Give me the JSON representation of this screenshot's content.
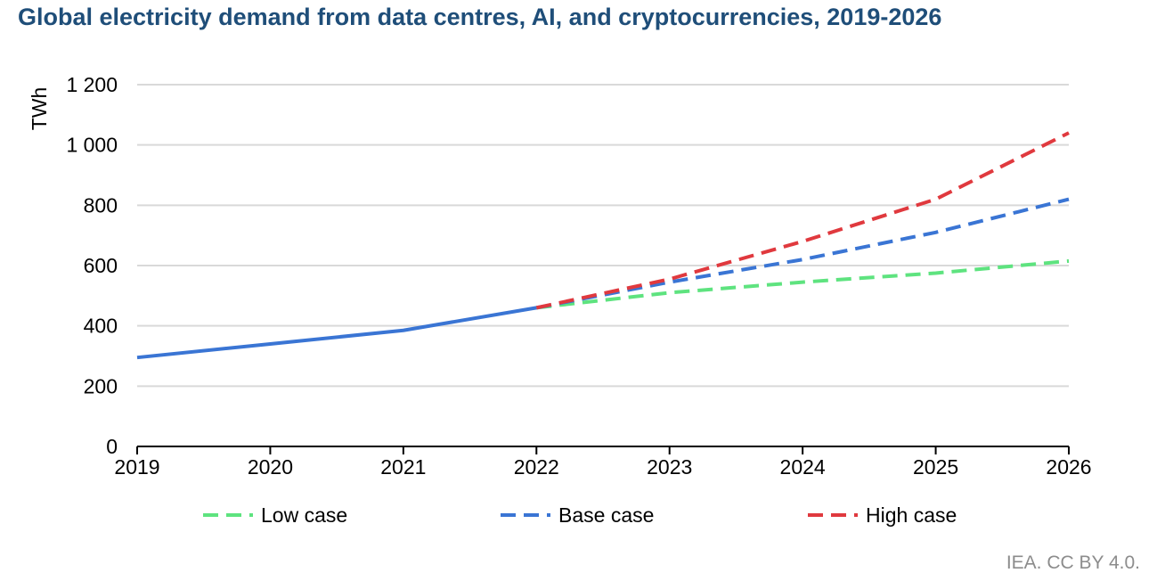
{
  "colors": {
    "title": "#1f4e79",
    "grid": "#d9d9d9",
    "axis": "#000000",
    "source": "#8c8c8c"
  },
  "chart_data": {
    "type": "line",
    "title": "Global electricity demand from data centres, AI, and cryptocurrencies, 2019-2026",
    "xlabel": "",
    "ylabel": "TWh",
    "x": [
      2019,
      2020,
      2021,
      2022,
      2023,
      2024,
      2025,
      2026
    ],
    "xlim": [
      2019,
      2026
    ],
    "ylim": [
      0,
      1200
    ],
    "y_ticks": [
      0,
      200,
      400,
      600,
      800,
      1000,
      1200
    ],
    "y_tick_labels": [
      "0",
      "200",
      "400",
      "600",
      "800",
      "1 000",
      "1 200"
    ],
    "x_tick_labels": [
      "2019",
      "2020",
      "2021",
      "2022",
      "2023",
      "2024",
      "2025",
      "2026"
    ],
    "grid": true,
    "legend_position": "bottom",
    "historical": {
      "x": [
        2019,
        2020,
        2021,
        2022
      ],
      "values": [
        295,
        340,
        385,
        460
      ],
      "color": "#3a75d4"
    },
    "series": [
      {
        "name": "Low case",
        "color": "#5ee37f",
        "x": [
          2022,
          2023,
          2024,
          2025,
          2026
        ],
        "values": [
          460,
          510,
          545,
          575,
          615
        ]
      },
      {
        "name": "Base case",
        "color": "#3a75d4",
        "x": [
          2022,
          2023,
          2024,
          2025,
          2026
        ],
        "values": [
          460,
          545,
          620,
          710,
          820
        ]
      },
      {
        "name": "High case",
        "color": "#e0393e",
        "x": [
          2022,
          2023,
          2024,
          2025,
          2026
        ],
        "values": [
          460,
          555,
          680,
          820,
          1040
        ]
      }
    ]
  },
  "source": "IEA. CC BY 4.0."
}
